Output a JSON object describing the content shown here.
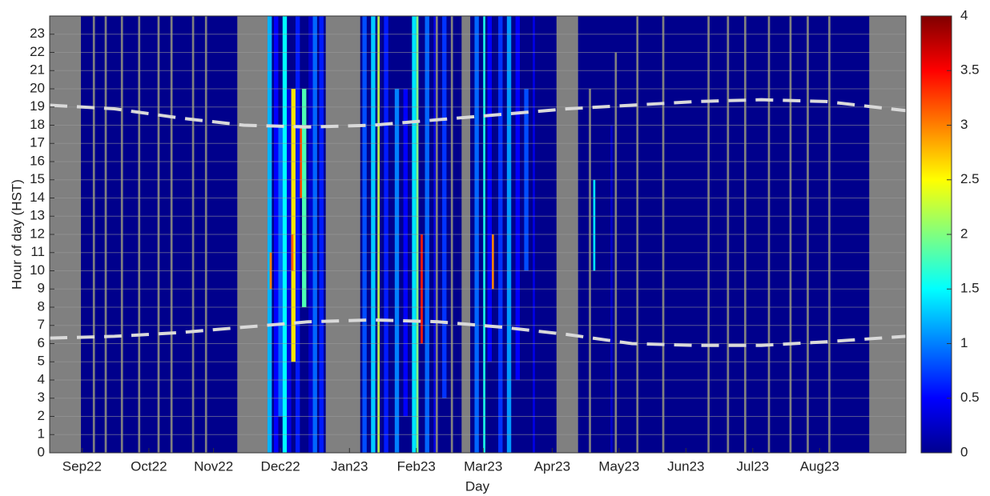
{
  "chart_data": {
    "type": "heatmap",
    "xlabel": "Day",
    "ylabel": "Hour of day (HST)",
    "xlim": [
      0,
      397
    ],
    "xticks": [
      {
        "value": 15,
        "label": "Sep22"
      },
      {
        "value": 46,
        "label": "Oct22"
      },
      {
        "value": 76,
        "label": "Nov22"
      },
      {
        "value": 107,
        "label": "Dec22"
      },
      {
        "value": 139,
        "label": "Jan23"
      },
      {
        "value": 170,
        "label": "Feb23"
      },
      {
        "value": 201,
        "label": "Mar23"
      },
      {
        "value": 233,
        "label": "Apr23"
      },
      {
        "value": 264,
        "label": "May23"
      },
      {
        "value": 295,
        "label": "Jun23"
      },
      {
        "value": 326,
        "label": "Jul23"
      },
      {
        "value": 357,
        "label": "Aug23"
      }
    ],
    "ylim": [
      0,
      24
    ],
    "yticks": [
      0,
      1,
      2,
      3,
      4,
      5,
      6,
      7,
      8,
      9,
      10,
      11,
      12,
      13,
      14,
      15,
      16,
      17,
      18,
      19,
      20,
      21,
      22,
      23
    ],
    "grid": true,
    "missing_color": "#808080",
    "colormap": "jet",
    "zlim": [
      0,
      4
    ],
    "zticks": [
      0,
      0.5,
      1,
      1.5,
      2,
      2.5,
      3,
      3.5,
      4
    ],
    "cells": [
      {
        "x": [
          0,
          397
        ],
        "y": [
          0,
          24
        ],
        "value": 0.05
      },
      {
        "x": [
          0,
          14.5
        ],
        "y": [
          0,
          24
        ],
        "value": null
      },
      {
        "x": [
          87,
          101
        ],
        "y": [
          0,
          24
        ],
        "value": null
      },
      {
        "x": [
          128,
          144
        ],
        "y": [
          0,
          24
        ],
        "value": null
      },
      {
        "x": [
          191,
          195
        ],
        "y": [
          0,
          24
        ],
        "value": null
      },
      {
        "x": [
          235,
          245
        ],
        "y": [
          0,
          24
        ],
        "value": null
      },
      {
        "x": [
          380,
          397
        ],
        "y": [
          0,
          24
        ],
        "value": null
      },
      {
        "x": [
          20,
          21
        ],
        "y": [
          0,
          24
        ],
        "value": null
      },
      {
        "x": [
          25.5,
          26.5
        ],
        "y": [
          0,
          24
        ],
        "value": null
      },
      {
        "x": [
          33,
          34
        ],
        "y": [
          0,
          24
        ],
        "value": null
      },
      {
        "x": [
          41,
          42
        ],
        "y": [
          0,
          24
        ],
        "value": null
      },
      {
        "x": [
          50,
          51
        ],
        "y": [
          0,
          24
        ],
        "value": null
      },
      {
        "x": [
          56,
          57
        ],
        "y": [
          0,
          24
        ],
        "value": null
      },
      {
        "x": [
          66,
          67
        ],
        "y": [
          0,
          24
        ],
        "value": null
      },
      {
        "x": [
          72,
          73
        ],
        "y": [
          0,
          24
        ],
        "value": null
      },
      {
        "x": [
          179,
          180
        ],
        "y": [
          0,
          24
        ],
        "value": null
      },
      {
        "x": [
          186,
          187
        ],
        "y": [
          0,
          24
        ],
        "value": null
      },
      {
        "x": [
          250,
          251
        ],
        "y": [
          0,
          20
        ],
        "value": null
      },
      {
        "x": [
          262,
          263
        ],
        "y": [
          0,
          22
        ],
        "value": null
      },
      {
        "x": [
          272,
          273
        ],
        "y": [
          0,
          24
        ],
        "value": null
      },
      {
        "x": [
          284,
          285
        ],
        "y": [
          0,
          24
        ],
        "value": null
      },
      {
        "x": [
          305,
          306
        ],
        "y": [
          0,
          24
        ],
        "value": null
      },
      {
        "x": [
          314,
          315
        ],
        "y": [
          0,
          24
        ],
        "value": null
      },
      {
        "x": [
          322,
          323
        ],
        "y": [
          0,
          24
        ],
        "value": null
      },
      {
        "x": [
          333,
          334
        ],
        "y": [
          0,
          24
        ],
        "value": null
      },
      {
        "x": [
          343,
          344
        ],
        "y": [
          0,
          24
        ],
        "value": null
      },
      {
        "x": [
          351,
          352
        ],
        "y": [
          0,
          24
        ],
        "value": null
      },
      {
        "x": [
          361,
          362
        ],
        "y": [
          0,
          24
        ],
        "value": null
      },
      {
        "x": [
          101,
          103
        ],
        "y": [
          0,
          24
        ],
        "value": 1.2
      },
      {
        "x": [
          104,
          106
        ],
        "y": [
          0,
          24
        ],
        "value": 0.5
      },
      {
        "x": [
          106,
          108
        ],
        "y": [
          2,
          18
        ],
        "value": 0.9
      },
      {
        "x": [
          108,
          110
        ],
        "y": [
          0,
          24
        ],
        "value": 1.5
      },
      {
        "x": [
          110,
          112
        ],
        "y": [
          0,
          20
        ],
        "value": 0.4
      },
      {
        "x": [
          112,
          114
        ],
        "y": [
          5,
          20
        ],
        "value": 2.6
      },
      {
        "x": [
          114,
          116
        ],
        "y": [
          0,
          24
        ],
        "value": 0.6
      },
      {
        "x": [
          116,
          118
        ],
        "y": [
          14,
          18
        ],
        "value": 3.2
      },
      {
        "x": [
          117,
          119
        ],
        "y": [
          8,
          20
        ],
        "value": 1.8
      },
      {
        "x": [
          120,
          122
        ],
        "y": [
          0,
          24
        ],
        "value": 0.3
      },
      {
        "x": [
          122,
          124
        ],
        "y": [
          0,
          24
        ],
        "value": 0.9
      },
      {
        "x": [
          125,
          127
        ],
        "y": [
          0,
          24
        ],
        "value": 0.6
      },
      {
        "x": [
          102,
          103
        ],
        "y": [
          9,
          11
        ],
        "value": 3.0
      },
      {
        "x": [
          112,
          113
        ],
        "y": [
          10,
          12
        ],
        "value": 3.1
      },
      {
        "x": [
          145,
          147
        ],
        "y": [
          0,
          24
        ],
        "value": 0.8
      },
      {
        "x": [
          149,
          151
        ],
        "y": [
          0,
          24
        ],
        "value": 1.3
      },
      {
        "x": [
          152,
          153
        ],
        "y": [
          0,
          24
        ],
        "value": 2.2
      },
      {
        "x": [
          155,
          157
        ],
        "y": [
          0,
          24
        ],
        "value": 0.6
      },
      {
        "x": [
          160,
          162
        ],
        "y": [
          0,
          20
        ],
        "value": 1.0
      },
      {
        "x": [
          164,
          166
        ],
        "y": [
          2,
          20
        ],
        "value": 0.5
      },
      {
        "x": [
          168,
          170
        ],
        "y": [
          0,
          24
        ],
        "value": 1.4
      },
      {
        "x": [
          170,
          171
        ],
        "y": [
          0,
          24
        ],
        "value": 2.0
      },
      {
        "x": [
          172,
          173
        ],
        "y": [
          6,
          12
        ],
        "value": 3.4
      },
      {
        "x": [
          174,
          176
        ],
        "y": [
          0,
          24
        ],
        "value": 0.9
      },
      {
        "x": [
          178,
          179
        ],
        "y": [
          0,
          24
        ],
        "value": 0.4
      },
      {
        "x": [
          182,
          184
        ],
        "y": [
          3,
          24
        ],
        "value": 0.7
      },
      {
        "x": [
          197,
          199
        ],
        "y": [
          0,
          24
        ],
        "value": 0.9
      },
      {
        "x": [
          201,
          202
        ],
        "y": [
          0,
          24
        ],
        "value": 1.6
      },
      {
        "x": [
          203,
          205
        ],
        "y": [
          5,
          24
        ],
        "value": 0.5
      },
      {
        "x": [
          205,
          206
        ],
        "y": [
          9,
          12
        ],
        "value": 3.0
      },
      {
        "x": [
          208,
          210
        ],
        "y": [
          0,
          24
        ],
        "value": 0.7
      },
      {
        "x": [
          212,
          214
        ],
        "y": [
          0,
          24
        ],
        "value": 1.1
      },
      {
        "x": [
          216,
          218
        ],
        "y": [
          4,
          24
        ],
        "value": 0.5
      },
      {
        "x": [
          220,
          222
        ],
        "y": [
          10,
          20
        ],
        "value": 0.8
      },
      {
        "x": [
          224,
          225
        ],
        "y": [
          0,
          24
        ],
        "value": 0.4
      },
      {
        "x": [
          252,
          253
        ],
        "y": [
          10,
          15
        ],
        "value": 1.4
      },
      {
        "x": [
          260,
          261
        ],
        "y": [
          0,
          18
        ],
        "value": 0.3
      }
    ],
    "series": [
      {
        "color": "#d9d9d9",
        "x": [
          0,
          30,
          60,
          90,
          120,
          150,
          180,
          210,
          240,
          270,
          300,
          330,
          360,
          397
        ],
        "values": [
          19.1,
          18.9,
          18.4,
          18.0,
          17.9,
          18.0,
          18.3,
          18.6,
          18.9,
          19.1,
          19.3,
          19.4,
          19.3,
          18.8
        ]
      },
      {
        "color": "#d9d9d9",
        "x": [
          0,
          30,
          60,
          90,
          120,
          150,
          180,
          210,
          240,
          270,
          300,
          330,
          360,
          397
        ],
        "values": [
          6.3,
          6.4,
          6.6,
          6.9,
          7.2,
          7.3,
          7.2,
          6.9,
          6.5,
          6.0,
          5.9,
          5.9,
          6.1,
          6.4
        ]
      }
    ]
  }
}
